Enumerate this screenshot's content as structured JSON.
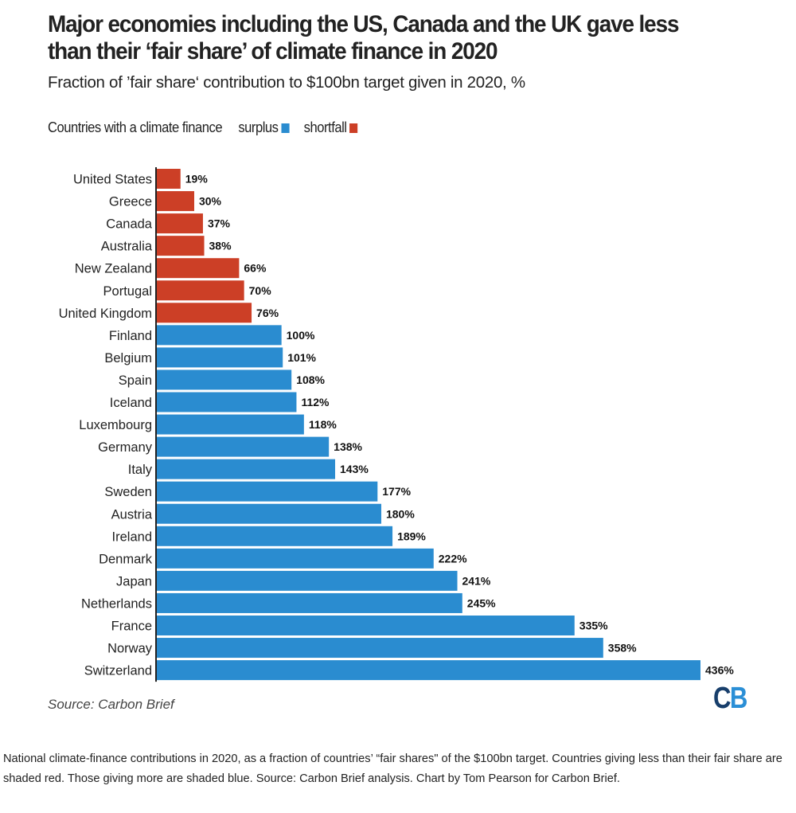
{
  "header": {
    "title": "Major economies including the US, Canada and the UK gave less than their ‘fair share’ of climate finance in 2020",
    "subtitle": "Fraction of ’fair share‘ contribution to $100bn target given in 2020, %"
  },
  "legend": {
    "intro": "Countries with a climate finance",
    "items": [
      {
        "label": "surplus",
        "color": "#2a8cd0"
      },
      {
        "label": "shortfall",
        "color": "#cc3f26"
      }
    ]
  },
  "colors": {
    "surplus": "#2a8cd0",
    "shortfall": "#cc3f26",
    "axis": "#222222",
    "value_label": "#111111",
    "category_label": "#222222"
  },
  "chart_data": {
    "type": "bar",
    "orientation": "horizontal",
    "title": "Major economies including the US, Canada and the UK gave less than their ‘fair share’ of climate finance in 2020",
    "subtitle": "Fraction of ’fair share‘ contribution to $100bn target given in 2020, %",
    "xlabel": "",
    "ylabel": "",
    "xlim": [
      0,
      436
    ],
    "grid": false,
    "legend_position": "top-left",
    "value_suffix": "%",
    "categories": [
      "United States",
      "Greece",
      "Canada",
      "Australia",
      "New Zealand",
      "Portugal",
      "United Kingdom",
      "Finland",
      "Belgium",
      "Spain",
      "Iceland",
      "Luxembourg",
      "Germany",
      "Italy",
      "Sweden",
      "Austria",
      "Ireland",
      "Denmark",
      "Japan",
      "Netherlands",
      "France",
      "Norway",
      "Switzerland"
    ],
    "values": [
      19,
      30,
      37,
      38,
      66,
      70,
      76,
      100,
      101,
      108,
      112,
      118,
      138,
      143,
      177,
      180,
      189,
      222,
      241,
      245,
      335,
      358,
      436
    ],
    "status": [
      "shortfall",
      "shortfall",
      "shortfall",
      "shortfall",
      "shortfall",
      "shortfall",
      "shortfall",
      "surplus",
      "surplus",
      "surplus",
      "surplus",
      "surplus",
      "surplus",
      "surplus",
      "surplus",
      "surplus",
      "surplus",
      "surplus",
      "surplus",
      "surplus",
      "surplus",
      "surplus",
      "surplus"
    ]
  },
  "footer": {
    "source": "Source: Carbon Brief",
    "logo_c": "C",
    "logo_b": "B",
    "caption": "National climate-finance contributions in 2020, as a fraction of countries’ “fair shares\" of the $100bn target. Countries giving less than their fair share are shaded red. Those giving more are shaded blue. Source: Carbon Brief analysis. Chart by Tom Pearson for Carbon Brief."
  }
}
